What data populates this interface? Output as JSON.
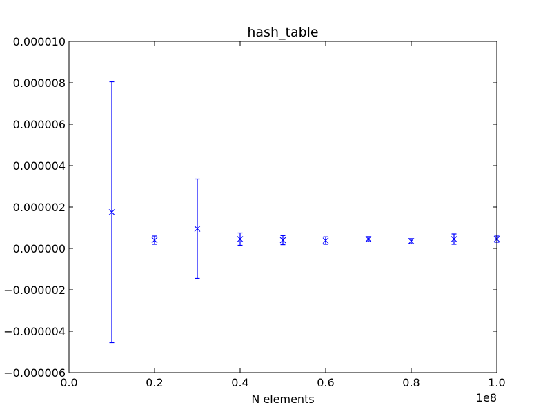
{
  "chart_data": {
    "type": "scatter",
    "title": "hash_table",
    "xlabel": "N elements",
    "ylabel": "",
    "x_offset_label": "1e8",
    "xlim": [
      0,
      100000000
    ],
    "ylim": [
      -6e-06,
      1e-05
    ],
    "x_ticks": [
      0,
      20000000,
      40000000,
      60000000,
      80000000,
      100000000
    ],
    "x_tick_labels": [
      "0.0",
      "0.2",
      "0.4",
      "0.6",
      "0.8",
      "1.0"
    ],
    "y_ticks": [
      -6e-06,
      -4e-06,
      -2e-06,
      0,
      2e-06,
      4e-06,
      6e-06,
      8e-06,
      1e-05
    ],
    "y_tick_labels": [
      "−0.000006",
      "−0.000004",
      "−0.000002",
      "0.000000",
      "0.000002",
      "0.000004",
      "0.000006",
      "0.000008",
      "0.000010"
    ],
    "grid": false,
    "color": "#0000ff",
    "marker": "x",
    "series": [
      {
        "x": [
          10000000,
          20000000,
          30000000,
          40000000,
          50000000,
          60000000,
          70000000,
          80000000,
          90000000,
          100000000
        ],
        "y": [
          1.75e-06,
          4e-07,
          9.5e-07,
          4.5e-07,
          4e-07,
          3.8e-07,
          4.5e-07,
          3.5e-07,
          4.5e-07,
          4.5e-07
        ],
        "yerr": [
          6.3e-06,
          2e-07,
          2.4e-06,
          3e-07,
          2.2e-07,
          1.8e-07,
          1.2e-07,
          1.2e-07,
          2.5e-07,
          1.5e-07
        ]
      }
    ]
  }
}
